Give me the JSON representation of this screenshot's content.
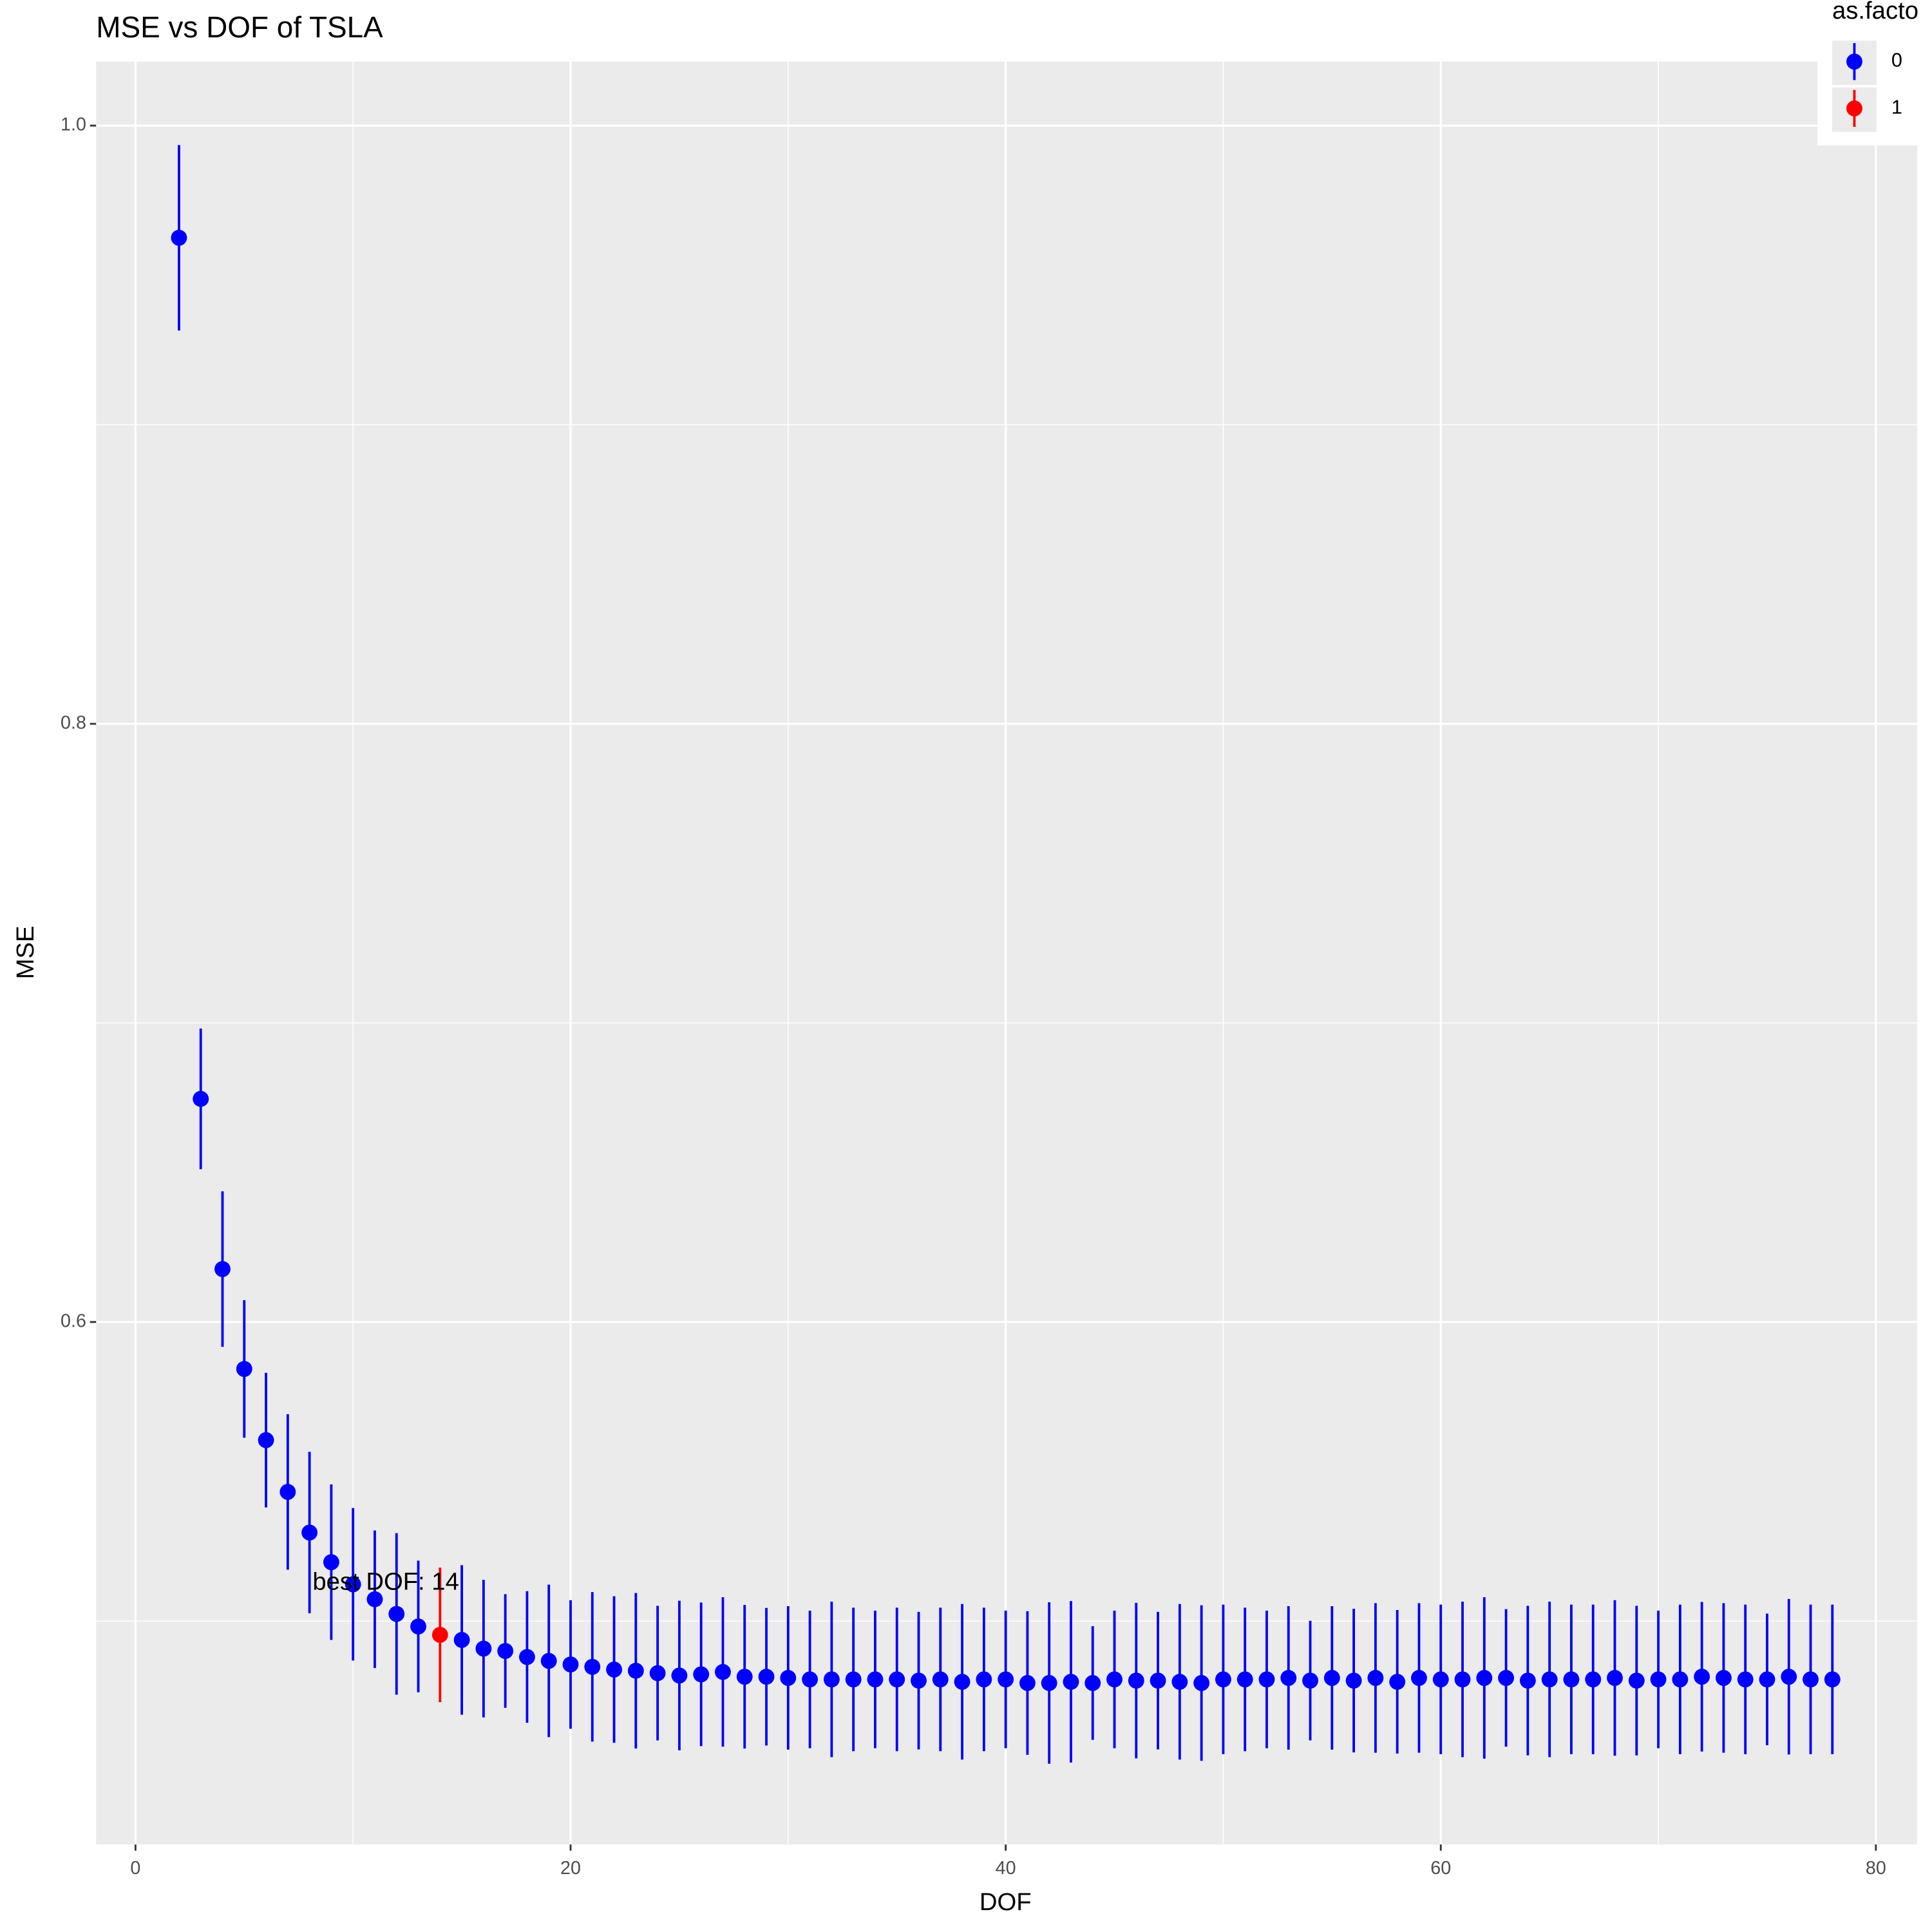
{
  "chart_data": {
    "type": "errorbar",
    "title": "MSE vs DOF of  TSLA",
    "x_label": "DOF",
    "y_label": "MSE",
    "annotation": "best DOF: 14",
    "legend_title": "as.facto",
    "xlim": [
      -1.81,
      81.9
    ],
    "ylim": [
      0.4253,
      1.0214
    ],
    "xticks": [
      0,
      20,
      40,
      60,
      80
    ],
    "yticks": [
      0.6,
      0.8,
      {
        "value": 1.0,
        "label": "1.0"
      }
    ],
    "grid": true,
    "series": [
      {
        "name": "0",
        "color": "#0000ff",
        "x": [
          2,
          3,
          4,
          5,
          6,
          7,
          8,
          9,
          10,
          11,
          12,
          13,
          15,
          16,
          17,
          18,
          19,
          20,
          21,
          22,
          23,
          24,
          25,
          26,
          27,
          28,
          29,
          30,
          31,
          32,
          33,
          34,
          35,
          36,
          37,
          38,
          39,
          40,
          41,
          42,
          43,
          44,
          45,
          46,
          47,
          48,
          49,
          50,
          51,
          52,
          53,
          54,
          55,
          56,
          57,
          58,
          59,
          60,
          61,
          62,
          63,
          64,
          65,
          66,
          67,
          68,
          69,
          70,
          71,
          72,
          73,
          74,
          75,
          76,
          77,
          78
        ],
        "values": [
          0.9625,
          0.6746,
          0.6177,
          0.5843,
          0.5605,
          0.5432,
          0.5296,
          0.5197,
          0.5123,
          0.5073,
          0.5024,
          0.4982,
          0.4937,
          0.4908,
          0.49,
          0.488,
          0.4867,
          0.4855,
          0.4847,
          0.4838,
          0.4834,
          0.4826,
          0.4818,
          0.4822,
          0.483,
          0.4814,
          0.4814,
          0.481,
          0.4805,
          0.4805,
          0.4805,
          0.4805,
          0.4805,
          0.4801,
          0.4805,
          0.4797,
          0.4805,
          0.4805,
          0.4793,
          0.4793,
          0.4797,
          0.4793,
          0.4805,
          0.4801,
          0.4801,
          0.4797,
          0.4793,
          0.4805,
          0.4805,
          0.4805,
          0.481,
          0.4801,
          0.481,
          0.4801,
          0.481,
          0.4797,
          0.481,
          0.4805,
          0.4805,
          0.481,
          0.481,
          0.4801,
          0.4805,
          0.4805,
          0.4805,
          0.481,
          0.4801,
          0.4805,
          0.4805,
          0.4814,
          0.481,
          0.4805,
          0.4805,
          0.4814,
          0.4805,
          0.4805
        ],
        "errors": [
          0.031,
          0.0235,
          0.026,
          0.023,
          0.0225,
          0.026,
          0.027,
          0.026,
          0.0255,
          0.023,
          0.027,
          0.022,
          0.025,
          0.023,
          0.019,
          0.022,
          0.0255,
          0.0215,
          0.025,
          0.0245,
          0.026,
          0.0225,
          0.025,
          0.024,
          0.025,
          0.024,
          0.023,
          0.024,
          0.023,
          0.026,
          0.024,
          0.023,
          0.024,
          0.023,
          0.024,
          0.026,
          0.024,
          0.023,
          0.024,
          0.027,
          0.027,
          0.019,
          0.023,
          0.026,
          0.023,
          0.026,
          0.026,
          0.025,
          0.024,
          0.023,
          0.024,
          0.02,
          0.024,
          0.024,
          0.025,
          0.024,
          0.025,
          0.025,
          0.026,
          0.027,
          0.023,
          0.025,
          0.026,
          0.025,
          0.025,
          0.026,
          0.025,
          0.023,
          0.025,
          0.025,
          0.025,
          0.025,
          0.022,
          0.026,
          0.025,
          0.025
        ]
      },
      {
        "name": "1",
        "color": "#ff0000",
        "x": [
          14
        ],
        "values": [
          0.4954
        ],
        "errors": [
          0.0225
        ]
      }
    ]
  }
}
